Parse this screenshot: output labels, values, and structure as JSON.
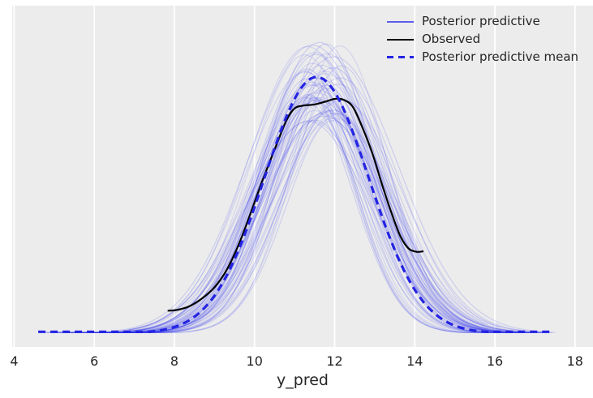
{
  "figure": {
    "background": "#ffffff",
    "axes_background": "#ececec",
    "grid_color": "#ffffff",
    "text_color": "#262626"
  },
  "legend": {
    "items": [
      {
        "label": "Posterior predictive",
        "color": "#2a2eec",
        "style": "solid",
        "opacity": 0.75
      },
      {
        "label": "Observed",
        "color": "#000000",
        "style": "solid",
        "opacity": 1
      },
      {
        "label": "Posterior predictive mean",
        "color": "#2424e2",
        "style": "dashed",
        "opacity": 1
      }
    ]
  },
  "chart_data": {
    "type": "line",
    "subtype": "posterior-predictive-check-kde",
    "title": "",
    "xlabel": "y_pred",
    "ylabel": "",
    "xticks": [
      4,
      6,
      8,
      10,
      12,
      14,
      16,
      18
    ],
    "xlim": [
      3.95,
      18.45
    ],
    "ylim": [
      -0.0153,
      0.3643
    ],
    "grid": "vertical-only",
    "legend_position": "upper right",
    "series": [
      {
        "name": "Posterior predictive",
        "kind": "kde-ensemble",
        "n_curves": 60,
        "color": "#2a2eec",
        "opacity": 0.12,
        "line_width": 1.2,
        "center_range": [
          11.25,
          12.2
        ],
        "sigma_range": [
          1.12,
          1.62
        ],
        "peak_density_range": [
          0.23,
          0.325
        ],
        "x_start_range": [
          4.55,
          7.2
        ],
        "x_end_range": [
          15.6,
          17.55
        ],
        "tail_floor": 0.0008,
        "seed": 42
      },
      {
        "name": "Posterior predictive mean",
        "kind": "kde-mean",
        "color": "#2424e2",
        "dash": [
          9,
          6
        ],
        "line_width": 3.2,
        "center": 11.55,
        "sigma": 1.3,
        "peak_density": 0.285,
        "x_start": 4.6,
        "x_end": 17.52,
        "tail_floor": 0.0016
      },
      {
        "name": "Observed",
        "kind": "kde",
        "color": "#000000",
        "line_width": 2.2,
        "points": [
          [
            7.85,
            0.025
          ],
          [
            8.1,
            0.0262
          ],
          [
            8.4,
            0.0305
          ],
          [
            8.7,
            0.039
          ],
          [
            9.0,
            0.051
          ],
          [
            9.3,
            0.07
          ],
          [
            9.6,
            0.098
          ],
          [
            9.9,
            0.133
          ],
          [
            10.2,
            0.17
          ],
          [
            10.5,
            0.204
          ],
          [
            10.8,
            0.237
          ],
          [
            11.0,
            0.25
          ],
          [
            11.2,
            0.253
          ],
          [
            11.5,
            0.2545
          ],
          [
            11.8,
            0.258
          ],
          [
            12.0,
            0.2606
          ],
          [
            12.2,
            0.26
          ],
          [
            12.45,
            0.252
          ],
          [
            12.7,
            0.228
          ],
          [
            12.95,
            0.199
          ],
          [
            13.2,
            0.163
          ],
          [
            13.45,
            0.13
          ],
          [
            13.65,
            0.107
          ],
          [
            13.85,
            0.094
          ],
          [
            14.05,
            0.0905
          ],
          [
            14.2,
            0.091
          ]
        ]
      }
    ]
  }
}
